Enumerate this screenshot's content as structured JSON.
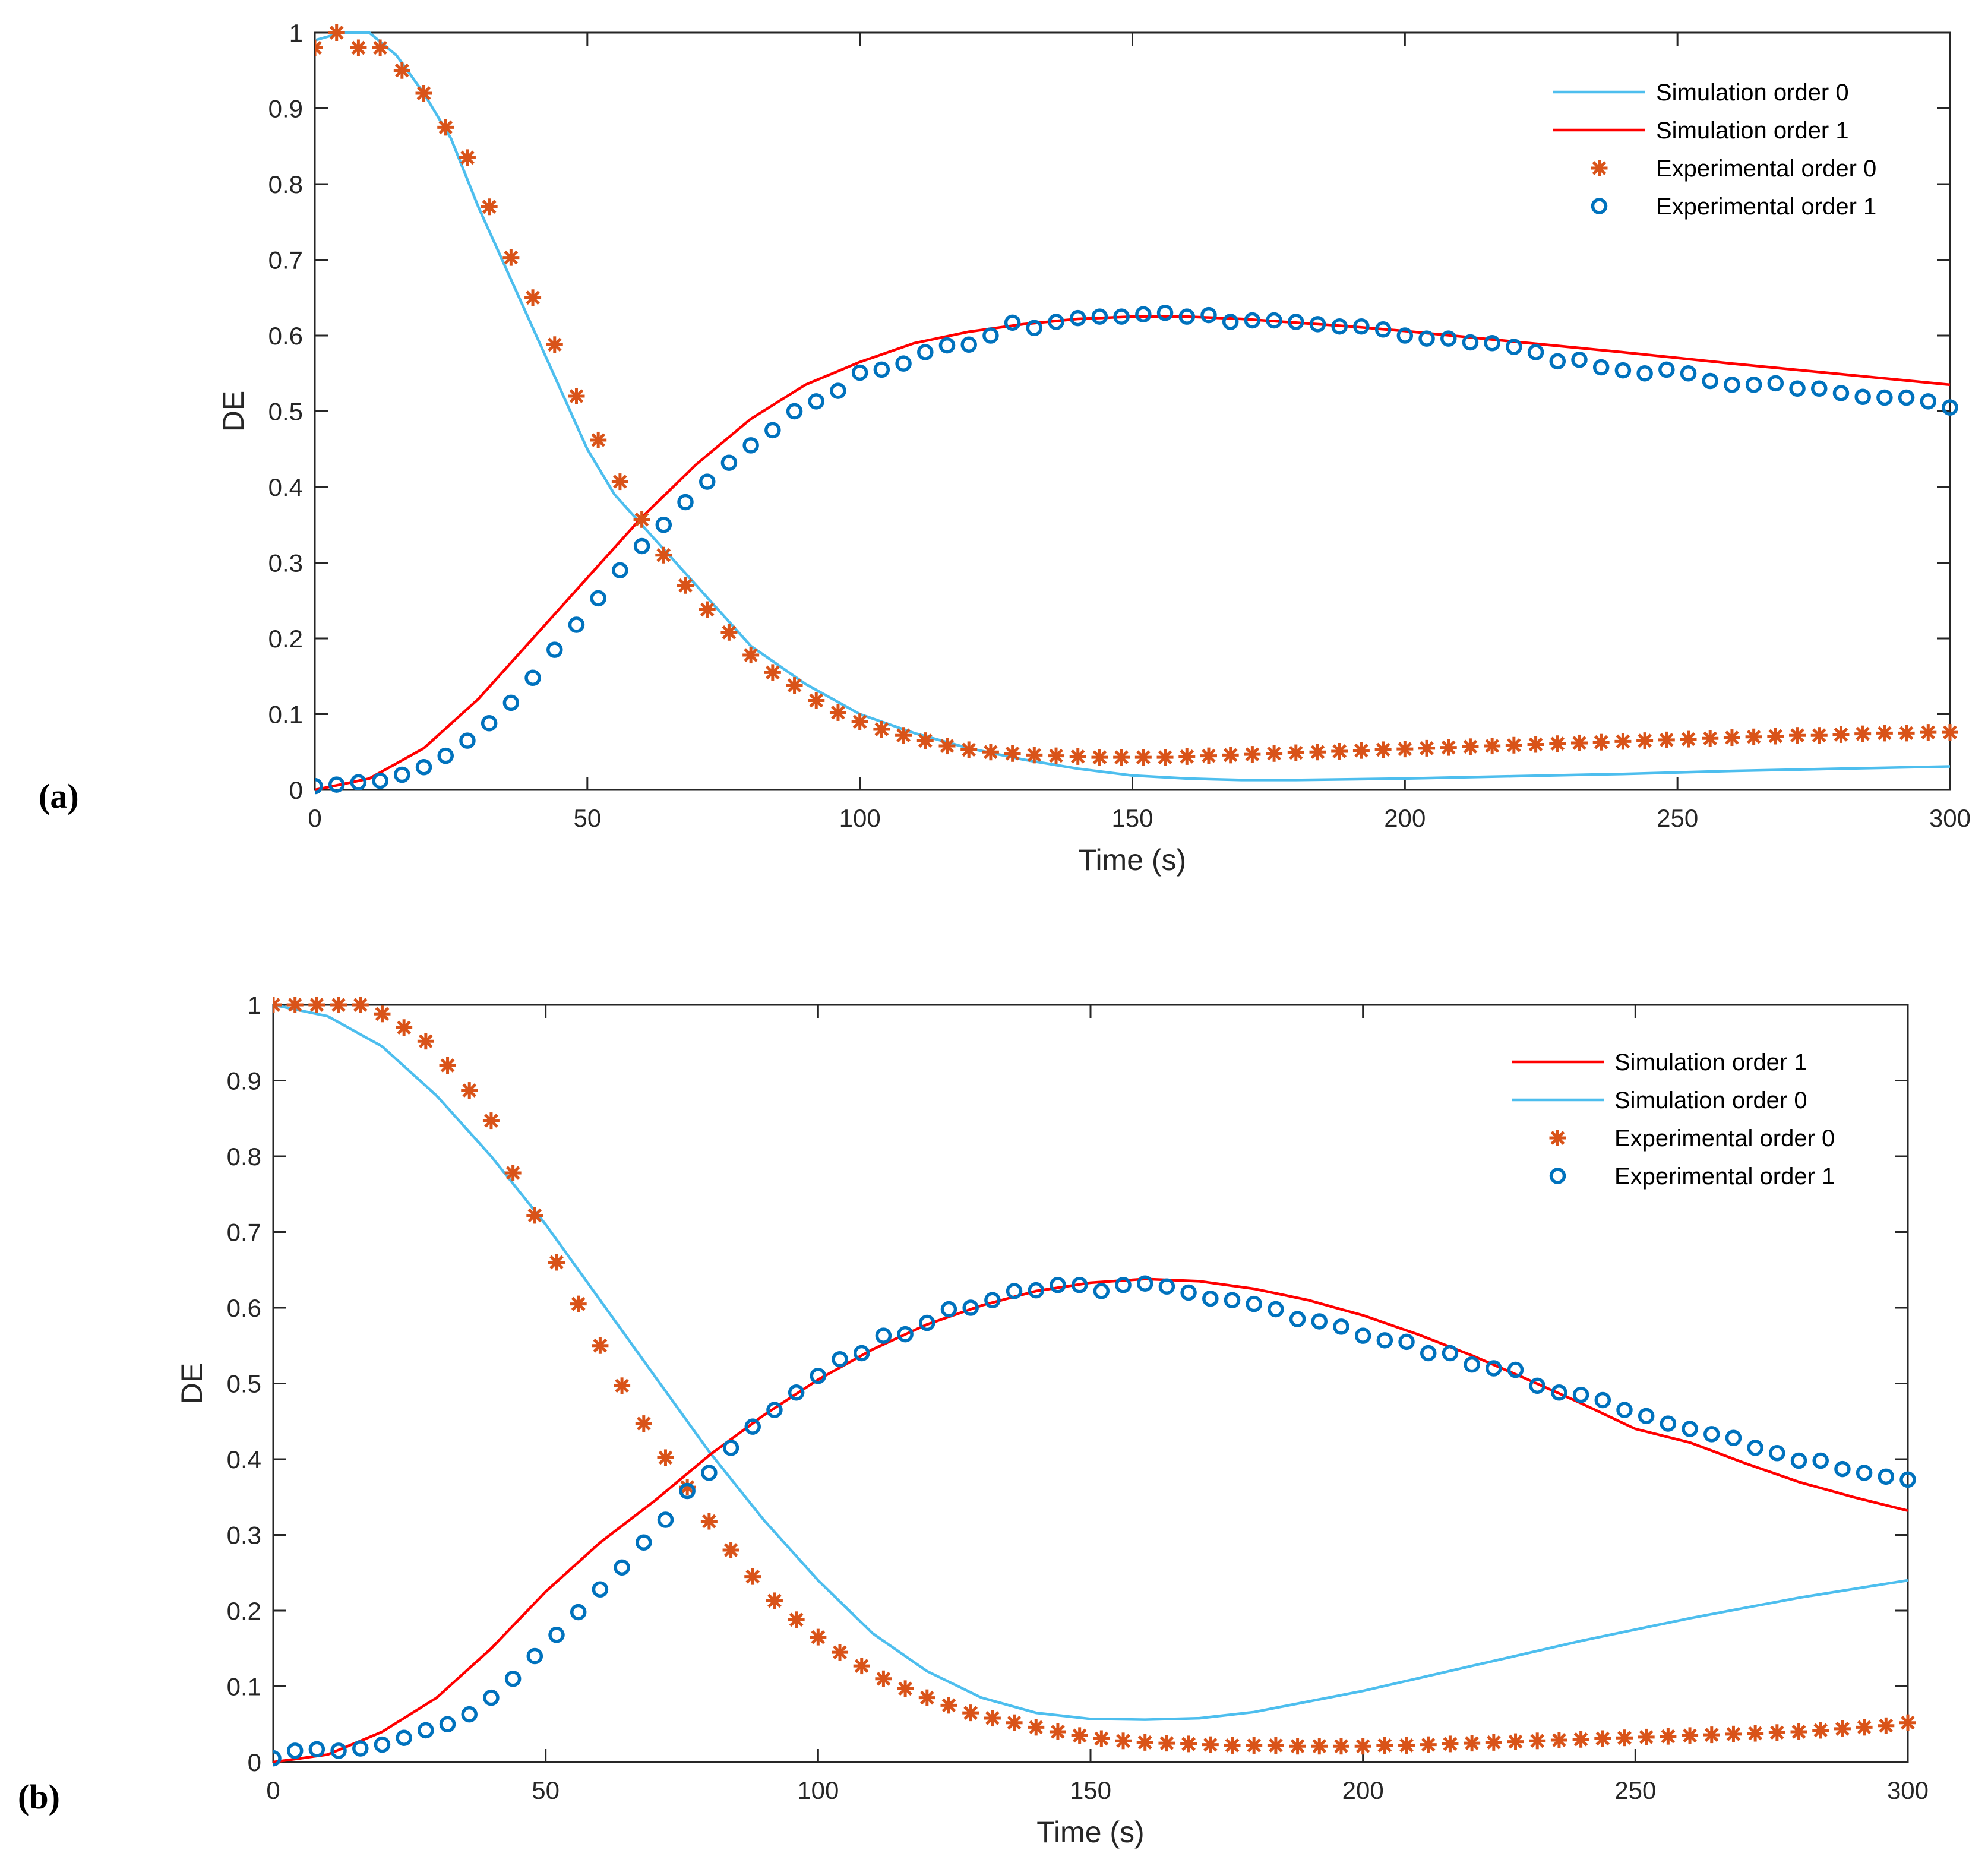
{
  "colors": {
    "sim0": "#4DBEEE",
    "sim1": "#FF0000",
    "exp0": "#D95319",
    "exp1": "#0072BD",
    "axis": "#262626"
  },
  "chart_data": [
    {
      "panel_label": "(a)",
      "type": "line",
      "xlabel": "Time (s)",
      "ylabel": "DE",
      "xlim": [
        0,
        300
      ],
      "ylim": [
        0,
        1
      ],
      "xticks": [
        0,
        50,
        100,
        150,
        200,
        250,
        300
      ],
      "xtick_labels": [
        "0",
        "50",
        "100",
        "150",
        "200",
        "250",
        "300"
      ],
      "yticks": [
        0,
        0.1,
        0.2,
        0.3,
        0.4,
        0.5,
        0.6,
        0.7,
        0.8,
        0.9,
        1
      ],
      "ytick_labels": [
        "0",
        "0.1",
        "0.2",
        "0.3",
        "0.4",
        "0.5",
        "0.6",
        "0.7",
        "0.8",
        "0.9",
        "1"
      ],
      "grid": false,
      "legend_position": "top-right",
      "series": [
        {
          "name": "Simulation order 0",
          "kind": "line",
          "color_key": "sim0",
          "x": [
            0,
            5,
            10,
            15,
            20,
            25,
            30,
            35,
            40,
            45,
            50,
            55,
            60,
            65,
            70,
            75,
            80,
            90,
            100,
            110,
            120,
            130,
            140,
            150,
            160,
            170,
            180,
            200,
            220,
            240,
            260,
            280,
            300
          ],
          "y": [
            0.99,
            1.0,
            1.0,
            0.97,
            0.92,
            0.86,
            0.77,
            0.69,
            0.61,
            0.53,
            0.45,
            0.39,
            0.35,
            0.31,
            0.27,
            0.23,
            0.19,
            0.14,
            0.1,
            0.075,
            0.055,
            0.04,
            0.028,
            0.019,
            0.015,
            0.013,
            0.013,
            0.015,
            0.018,
            0.021,
            0.025,
            0.028,
            0.031
          ]
        },
        {
          "name": "Simulation order 1",
          "kind": "line",
          "color_key": "sim1",
          "x": [
            0,
            10,
            20,
            30,
            40,
            50,
            60,
            70,
            80,
            90,
            100,
            110,
            120,
            130,
            140,
            150,
            160,
            170,
            180,
            190,
            200,
            220,
            240,
            260,
            280,
            300
          ],
          "y": [
            0.0,
            0.015,
            0.055,
            0.12,
            0.2,
            0.28,
            0.36,
            0.43,
            0.49,
            0.535,
            0.565,
            0.59,
            0.605,
            0.615,
            0.622,
            0.625,
            0.625,
            0.622,
            0.617,
            0.612,
            0.606,
            0.592,
            0.578,
            0.563,
            0.549,
            0.535
          ]
        },
        {
          "name": "Experimental order 0",
          "kind": "marker",
          "marker": "asterisk",
          "color_key": "exp0",
          "x": [
            0,
            4,
            8,
            12,
            16,
            20,
            24,
            28,
            32,
            36,
            40,
            44,
            48,
            52,
            56,
            60,
            64,
            68,
            72,
            76,
            80,
            84,
            88,
            92,
            96,
            100,
            104,
            108,
            112,
            116,
            120,
            124,
            128,
            132,
            136,
            140,
            144,
            148,
            152,
            156,
            160,
            164,
            168,
            172,
            176,
            180,
            184,
            188,
            192,
            196,
            200,
            204,
            208,
            212,
            216,
            220,
            224,
            228,
            232,
            236,
            240,
            244,
            248,
            252,
            256,
            260,
            264,
            268,
            272,
            276,
            280,
            284,
            288,
            292,
            296,
            300
          ],
          "y": [
            0.98,
            1.0,
            0.98,
            0.98,
            0.95,
            0.92,
            0.875,
            0.835,
            0.77,
            0.703,
            0.65,
            0.588,
            0.52,
            0.462,
            0.407,
            0.357,
            0.31,
            0.27,
            0.238,
            0.208,
            0.178,
            0.155,
            0.138,
            0.118,
            0.102,
            0.09,
            0.08,
            0.072,
            0.065,
            0.058,
            0.053,
            0.05,
            0.048,
            0.046,
            0.045,
            0.044,
            0.043,
            0.043,
            0.043,
            0.043,
            0.044,
            0.045,
            0.046,
            0.047,
            0.048,
            0.049,
            0.05,
            0.051,
            0.052,
            0.053,
            0.054,
            0.055,
            0.056,
            0.057,
            0.058,
            0.059,
            0.06,
            0.061,
            0.062,
            0.063,
            0.064,
            0.065,
            0.066,
            0.067,
            0.068,
            0.069,
            0.07,
            0.071,
            0.072,
            0.072,
            0.073,
            0.074,
            0.075,
            0.075,
            0.076,
            0.076
          ]
        },
        {
          "name": "Experimental order 1",
          "kind": "marker",
          "marker": "circle",
          "color_key": "exp1",
          "x": [
            0,
            4,
            8,
            12,
            16,
            20,
            24,
            28,
            32,
            36,
            40,
            44,
            48,
            52,
            56,
            60,
            64,
            68,
            72,
            76,
            80,
            84,
            88,
            92,
            96,
            100,
            104,
            108,
            112,
            116,
            120,
            124,
            128,
            132,
            136,
            140,
            144,
            148,
            152,
            156,
            160,
            164,
            168,
            172,
            176,
            180,
            184,
            188,
            192,
            196,
            200,
            204,
            208,
            212,
            216,
            220,
            224,
            228,
            232,
            236,
            240,
            244,
            248,
            252,
            256,
            260,
            264,
            268,
            272,
            276,
            280,
            284,
            288,
            292,
            296,
            300
          ],
          "y": [
            0.005,
            0.007,
            0.01,
            0.012,
            0.02,
            0.03,
            0.045,
            0.065,
            0.088,
            0.115,
            0.148,
            0.185,
            0.218,
            0.253,
            0.29,
            0.322,
            0.35,
            0.38,
            0.407,
            0.432,
            0.455,
            0.475,
            0.5,
            0.513,
            0.527,
            0.551,
            0.555,
            0.563,
            0.578,
            0.587,
            0.588,
            0.6,
            0.617,
            0.61,
            0.618,
            0.623,
            0.625,
            0.625,
            0.628,
            0.63,
            0.625,
            0.627,
            0.618,
            0.62,
            0.62,
            0.618,
            0.615,
            0.612,
            0.612,
            0.608,
            0.6,
            0.596,
            0.596,
            0.591,
            0.59,
            0.585,
            0.578,
            0.566,
            0.568,
            0.558,
            0.554,
            0.55,
            0.555,
            0.55,
            0.54,
            0.535,
            0.535,
            0.537,
            0.53,
            0.53,
            0.524,
            0.519,
            0.518,
            0.518,
            0.513,
            0.505
          ]
        }
      ],
      "legend_order": [
        0,
        1,
        2,
        3
      ]
    },
    {
      "panel_label": "(b)",
      "type": "line",
      "xlabel": "Time (s)",
      "ylabel": "DE",
      "xlim": [
        0,
        300
      ],
      "ylim": [
        0,
        1
      ],
      "xticks": [
        0,
        50,
        100,
        150,
        200,
        250,
        300
      ],
      "xtick_labels": [
        "0",
        "50",
        "100",
        "150",
        "200",
        "250",
        "300"
      ],
      "yticks": [
        0,
        0.1,
        0.2,
        0.3,
        0.4,
        0.5,
        0.6,
        0.7,
        0.8,
        0.9,
        1
      ],
      "ytick_labels": [
        "0",
        "0.1",
        "0.2",
        "0.3",
        "0.4",
        "0.5",
        "0.6",
        "0.7",
        "0.8",
        "0.9",
        "1"
      ],
      "grid": false,
      "legend_position": "top-right",
      "series": [
        {
          "name": "Simulation order 0",
          "kind": "line",
          "color_key": "sim0",
          "x": [
            0,
            10,
            20,
            30,
            40,
            50,
            60,
            70,
            80,
            90,
            100,
            110,
            120,
            130,
            140,
            150,
            160,
            170,
            180,
            200,
            220,
            240,
            260,
            280,
            300
          ],
          "y": [
            1.0,
            0.985,
            0.945,
            0.88,
            0.8,
            0.71,
            0.61,
            0.51,
            0.41,
            0.32,
            0.24,
            0.17,
            0.12,
            0.085,
            0.065,
            0.057,
            0.056,
            0.058,
            0.066,
            0.094,
            0.127,
            0.16,
            0.19,
            0.217,
            0.24
          ]
        },
        {
          "name": "Simulation order 1",
          "kind": "line",
          "color_key": "sim1",
          "x": [
            0,
            10,
            20,
            30,
            40,
            50,
            60,
            70,
            80,
            90,
            100,
            110,
            120,
            130,
            140,
            150,
            160,
            170,
            180,
            190,
            200,
            210,
            220,
            230,
            240,
            250,
            260,
            270,
            280,
            290,
            300
          ],
          "y": [
            0.0,
            0.01,
            0.04,
            0.085,
            0.15,
            0.225,
            0.29,
            0.345,
            0.405,
            0.458,
            0.505,
            0.545,
            0.578,
            0.603,
            0.622,
            0.633,
            0.638,
            0.635,
            0.625,
            0.61,
            0.59,
            0.565,
            0.537,
            0.506,
            0.474,
            0.44,
            0.422,
            0.395,
            0.37,
            0.35,
            0.332
          ]
        },
        {
          "name": "Experimental order 0",
          "kind": "marker",
          "marker": "asterisk",
          "color_key": "exp0",
          "x": [
            0,
            4,
            8,
            12,
            16,
            20,
            24,
            28,
            32,
            36,
            40,
            44,
            48,
            52,
            56,
            60,
            64,
            68,
            72,
            76,
            80,
            84,
            88,
            92,
            96,
            100,
            104,
            108,
            112,
            116,
            120,
            124,
            128,
            132,
            136,
            140,
            144,
            148,
            152,
            156,
            160,
            164,
            168,
            172,
            176,
            180,
            184,
            188,
            192,
            196,
            200,
            204,
            208,
            212,
            216,
            220,
            224,
            228,
            232,
            236,
            240,
            244,
            248,
            252,
            256,
            260,
            264,
            268,
            272,
            276,
            280,
            284,
            288,
            292,
            296,
            300
          ],
          "y": [
            1.0,
            1.0,
            1.0,
            1.0,
            1.0,
            0.988,
            0.97,
            0.952,
            0.92,
            0.887,
            0.847,
            0.778,
            0.722,
            0.66,
            0.605,
            0.55,
            0.497,
            0.447,
            0.402,
            0.363,
            0.318,
            0.28,
            0.245,
            0.213,
            0.188,
            0.165,
            0.145,
            0.127,
            0.11,
            0.097,
            0.085,
            0.075,
            0.065,
            0.058,
            0.052,
            0.046,
            0.04,
            0.035,
            0.031,
            0.028,
            0.026,
            0.025,
            0.024,
            0.023,
            0.022,
            0.022,
            0.022,
            0.021,
            0.021,
            0.021,
            0.021,
            0.022,
            0.022,
            0.023,
            0.024,
            0.025,
            0.026,
            0.027,
            0.028,
            0.029,
            0.03,
            0.031,
            0.032,
            0.033,
            0.034,
            0.035,
            0.036,
            0.037,
            0.038,
            0.039,
            0.04,
            0.042,
            0.044,
            0.046,
            0.048,
            0.052
          ]
        },
        {
          "name": "Experimental order 1",
          "kind": "marker",
          "marker": "circle",
          "color_key": "exp1",
          "x": [
            0,
            4,
            8,
            12,
            16,
            20,
            24,
            28,
            32,
            36,
            40,
            44,
            48,
            52,
            56,
            60,
            64,
            68,
            72,
            76,
            80,
            84,
            88,
            92,
            96,
            100,
            104,
            108,
            112,
            116,
            120,
            124,
            128,
            132,
            136,
            140,
            144,
            148,
            152,
            156,
            160,
            164,
            168,
            172,
            176,
            180,
            184,
            188,
            192,
            196,
            200,
            204,
            208,
            212,
            216,
            220,
            224,
            228,
            232,
            236,
            240,
            244,
            248,
            252,
            256,
            260,
            264,
            268,
            272,
            276,
            280,
            284,
            288,
            292,
            296,
            300
          ],
          "y": [
            0.005,
            0.015,
            0.017,
            0.015,
            0.018,
            0.023,
            0.032,
            0.042,
            0.05,
            0.063,
            0.085,
            0.11,
            0.14,
            0.168,
            0.198,
            0.228,
            0.257,
            0.29,
            0.32,
            0.358,
            0.382,
            0.415,
            0.443,
            0.465,
            0.488,
            0.51,
            0.532,
            0.54,
            0.563,
            0.565,
            0.58,
            0.598,
            0.6,
            0.61,
            0.622,
            0.623,
            0.63,
            0.63,
            0.622,
            0.63,
            0.632,
            0.628,
            0.62,
            0.612,
            0.61,
            0.605,
            0.598,
            0.585,
            0.582,
            0.575,
            0.563,
            0.557,
            0.555,
            0.54,
            0.54,
            0.525,
            0.52,
            0.518,
            0.497,
            0.488,
            0.485,
            0.478,
            0.465,
            0.457,
            0.447,
            0.44,
            0.433,
            0.428,
            0.415,
            0.408,
            0.398,
            0.398,
            0.387,
            0.382,
            0.377,
            0.373
          ]
        }
      ],
      "legend_order": [
        1,
        0,
        2,
        3
      ]
    }
  ]
}
